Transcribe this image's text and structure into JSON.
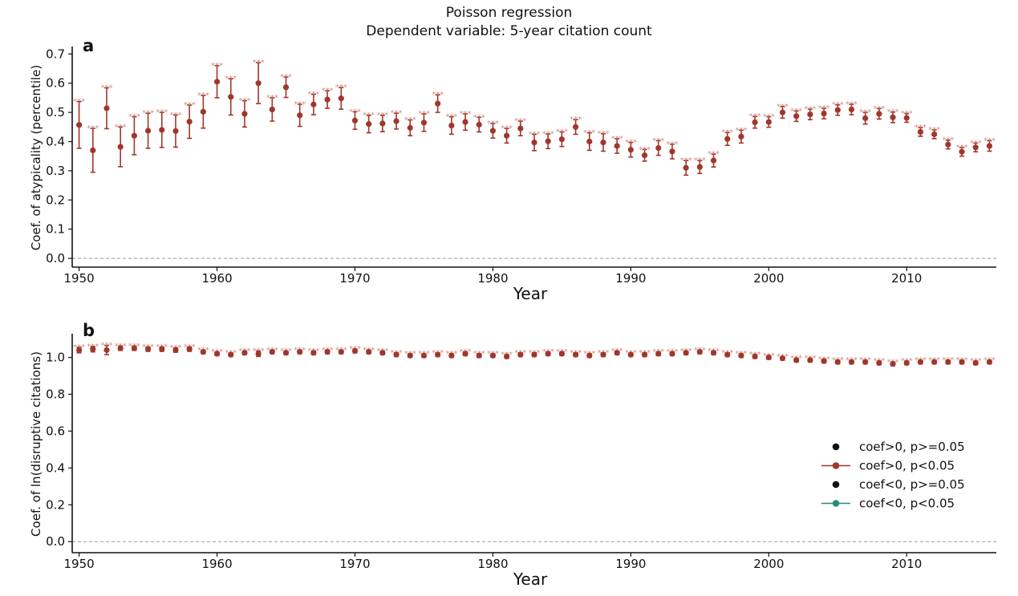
{
  "figure": {
    "title_line1": "Poisson regression",
    "title_line2": "Dependent variable: 5-year citation count"
  },
  "colors": {
    "significant_pos": "#A0372B",
    "significant_neg": "#2A8C74",
    "nonsignificant": "#111111",
    "star": "#D08C82",
    "zero_line": "#999999",
    "axis": "#111111"
  },
  "legend": {
    "items": [
      {
        "label": "coef>0, p>=0.05",
        "style": "dot",
        "color": "#111111"
      },
      {
        "label": "coef>0, p<0.05",
        "style": "line-dot",
        "color": "#A0372B"
      },
      {
        "label": "coef<0, p>=0.05",
        "style": "dot",
        "color": "#111111"
      },
      {
        "label": "coef<0, p<0.05",
        "style": "line-dot",
        "color": "#2A8C74"
      }
    ]
  },
  "chart_data": [
    {
      "panel": "a",
      "type": "scatter",
      "xlabel": "Year",
      "ylabel": "Coef. of atypicality (percentile)",
      "xlim": [
        1949.5,
        2016.5
      ],
      "ylim": [
        -0.03,
        0.72
      ],
      "xticks": [
        1950,
        1960,
        1970,
        1980,
        1990,
        2000,
        2010
      ],
      "yticks": [
        0.0,
        0.1,
        0.2,
        0.3,
        0.4,
        0.5,
        0.6,
        0.7
      ],
      "ytick_labels": [
        "0.0",
        "0.1",
        "0.2",
        "0.3",
        "0.4",
        "0.5",
        "0.6",
        "0.7"
      ],
      "zero_line": 0.0,
      "significance_marker": "***",
      "x": [
        1950,
        1951,
        1952,
        1953,
        1954,
        1955,
        1956,
        1957,
        1958,
        1959,
        1960,
        1961,
        1962,
        1963,
        1964,
        1965,
        1966,
        1967,
        1968,
        1969,
        1970,
        1971,
        1972,
        1973,
        1974,
        1975,
        1976,
        1977,
        1978,
        1979,
        1980,
        1981,
        1982,
        1983,
        1984,
        1985,
        1986,
        1987,
        1988,
        1989,
        1990,
        1991,
        1992,
        1993,
        1994,
        1995,
        1996,
        1997,
        1998,
        1999,
        2000,
        2001,
        2002,
        2003,
        2004,
        2005,
        2006,
        2007,
        2008,
        2009,
        2010,
        2011,
        2012,
        2013,
        2014,
        2015,
        2016
      ],
      "y": [
        0.457,
        0.37,
        0.514,
        0.382,
        0.42,
        0.437,
        0.44,
        0.436,
        0.468,
        0.502,
        0.605,
        0.553,
        0.495,
        0.6,
        0.51,
        0.586,
        0.49,
        0.527,
        0.544,
        0.548,
        0.472,
        0.46,
        0.462,
        0.47,
        0.447,
        0.465,
        0.53,
        0.455,
        0.467,
        0.458,
        0.437,
        0.42,
        0.445,
        0.397,
        0.401,
        0.408,
        0.45,
        0.4,
        0.397,
        0.385,
        0.372,
        0.353,
        0.378,
        0.366,
        0.31,
        0.313,
        0.335,
        0.409,
        0.417,
        0.466,
        0.467,
        0.5,
        0.487,
        0.493,
        0.496,
        0.508,
        0.51,
        0.48,
        0.495,
        0.483,
        0.481,
        0.433,
        0.425,
        0.39,
        0.365,
        0.38,
        0.385
      ],
      "err": [
        0.08,
        0.075,
        0.07,
        0.068,
        0.065,
        0.06,
        0.06,
        0.055,
        0.057,
        0.056,
        0.055,
        0.062,
        0.045,
        0.07,
        0.04,
        0.035,
        0.038,
        0.035,
        0.03,
        0.037,
        0.03,
        0.03,
        0.028,
        0.027,
        0.027,
        0.03,
        0.03,
        0.03,
        0.028,
        0.025,
        0.025,
        0.025,
        0.025,
        0.028,
        0.025,
        0.025,
        0.025,
        0.03,
        0.03,
        0.025,
        0.025,
        0.02,
        0.025,
        0.025,
        0.025,
        0.022,
        0.022,
        0.022,
        0.022,
        0.02,
        0.018,
        0.02,
        0.018,
        0.018,
        0.018,
        0.018,
        0.018,
        0.02,
        0.018,
        0.018,
        0.015,
        0.015,
        0.015,
        0.015,
        0.015,
        0.015,
        0.018
      ]
    },
    {
      "panel": "b",
      "type": "scatter",
      "xlabel": "Year",
      "ylabel": "Coef. of ln(disruptive citations)",
      "xlim": [
        1949.5,
        2016.5
      ],
      "ylim": [
        -0.06,
        1.12
      ],
      "xticks": [
        1950,
        1960,
        1970,
        1980,
        1990,
        2000,
        2010
      ],
      "yticks": [
        0.0,
        0.2,
        0.4,
        0.6,
        0.8,
        1.0
      ],
      "ytick_labels": [
        "0.0",
        "0.2",
        "0.4",
        "0.6",
        "0.8",
        "1.0"
      ],
      "zero_line": 0.0,
      "significance_marker": "***",
      "x": [
        1950,
        1951,
        1952,
        1953,
        1954,
        1955,
        1956,
        1957,
        1958,
        1959,
        1960,
        1961,
        1962,
        1963,
        1964,
        1965,
        1966,
        1967,
        1968,
        1969,
        1970,
        1971,
        1972,
        1973,
        1974,
        1975,
        1976,
        1977,
        1978,
        1979,
        1980,
        1981,
        1982,
        1983,
        1984,
        1985,
        1986,
        1987,
        1988,
        1989,
        1990,
        1991,
        1992,
        1993,
        1994,
        1995,
        1996,
        1997,
        1998,
        1999,
        2000,
        2001,
        2002,
        2003,
        2004,
        2005,
        2006,
        2007,
        2008,
        2009,
        2010,
        2011,
        2012,
        2013,
        2014,
        2015,
        2016
      ],
      "y": [
        1.04,
        1.045,
        1.04,
        1.05,
        1.05,
        1.045,
        1.045,
        1.04,
        1.045,
        1.03,
        1.02,
        1.015,
        1.025,
        1.02,
        1.03,
        1.025,
        1.03,
        1.025,
        1.03,
        1.03,
        1.035,
        1.03,
        1.025,
        1.015,
        1.01,
        1.01,
        1.015,
        1.01,
        1.02,
        1.01,
        1.01,
        1.005,
        1.015,
        1.015,
        1.02,
        1.02,
        1.015,
        1.01,
        1.015,
        1.025,
        1.015,
        1.015,
        1.02,
        1.02,
        1.025,
        1.03,
        1.025,
        1.015,
        1.01,
        1.005,
        1.0,
        0.995,
        0.985,
        0.985,
        0.98,
        0.975,
        0.975,
        0.975,
        0.97,
        0.965,
        0.97,
        0.975,
        0.975,
        0.975,
        0.975,
        0.97,
        0.975
      ],
      "err": [
        0.015,
        0.015,
        0.025,
        0.012,
        0.012,
        0.012,
        0.012,
        0.012,
        0.012,
        0.01,
        0.01,
        0.01,
        0.01,
        0.015,
        0.01,
        0.01,
        0.01,
        0.01,
        0.01,
        0.01,
        0.01,
        0.01,
        0.01,
        0.01,
        0.01,
        0.01,
        0.01,
        0.01,
        0.01,
        0.01,
        0.01,
        0.01,
        0.01,
        0.01,
        0.01,
        0.01,
        0.01,
        0.01,
        0.01,
        0.01,
        0.01,
        0.01,
        0.01,
        0.01,
        0.01,
        0.01,
        0.01,
        0.01,
        0.01,
        0.01,
        0.01,
        0.01,
        0.01,
        0.01,
        0.01,
        0.01,
        0.01,
        0.01,
        0.01,
        0.01,
        0.01,
        0.01,
        0.01,
        0.01,
        0.01,
        0.01,
        0.01
      ]
    }
  ]
}
